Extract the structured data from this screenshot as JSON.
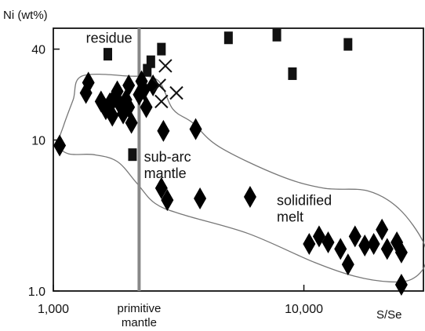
{
  "chart_data": {
    "type": "scatter",
    "ylabel": "Ni (wt%)",
    "xlabel": "S/Se",
    "x_scale": "log",
    "y_scale": "log",
    "xlim": [
      1000,
      30000
    ],
    "ylim": [
      1.0,
      55
    ],
    "x_ticks": [
      {
        "value": 1000,
        "label": "1,000"
      },
      {
        "value": 10000,
        "label": "10,000"
      }
    ],
    "y_ticks": [
      {
        "value": 1.0,
        "label": "1.0"
      },
      {
        "value": 10,
        "label": "10"
      },
      {
        "value": 40,
        "label": "40"
      }
    ],
    "annotations": [
      {
        "lines": [
          "residue"
        ],
        "at": [
          1350,
          44
        ]
      },
      {
        "lines": [
          "sub-arc",
          "mantle"
        ],
        "at": [
          2300,
          7.2
        ]
      },
      {
        "lines": [
          "solidified",
          "melt"
        ],
        "at": [
          7800,
          3.7
        ]
      }
    ],
    "reference_line": {
      "x": 2200,
      "label_lines": [
        "primitive",
        "mantle"
      ]
    },
    "field_outlines": [
      {
        "name": "residue-field",
        "points": [
          [
            1300,
            26.5
          ],
          [
            2000,
            26.5
          ],
          [
            2600,
            25
          ],
          [
            3000,
            16
          ],
          [
            3600,
            13
          ],
          [
            4600,
            9
          ],
          [
            8000,
            5.8
          ],
          [
            12000,
            4.8
          ],
          [
            18000,
            4.6
          ],
          [
            24000,
            3.5
          ],
          [
            30000,
            2.1
          ],
          [
            30500,
            1.5
          ],
          [
            27000,
            1.2
          ],
          [
            22000,
            1.15
          ],
          [
            16000,
            1.25
          ],
          [
            11000,
            1.55
          ],
          [
            6000,
            2.4
          ],
          [
            3300,
            3.2
          ],
          [
            2550,
            3.8
          ],
          [
            2150,
            5.2
          ],
          [
            1800,
            7.2
          ],
          [
            1450,
            8.0
          ],
          [
            1150,
            8.1
          ],
          [
            1050,
            9.4
          ],
          [
            1100,
            12.5
          ],
          [
            1200,
            18.5
          ],
          [
            1300,
            26.5
          ]
        ]
      }
    ],
    "series": [
      {
        "marker": "square",
        "points": [
          [
            1650,
            37
          ],
          [
            2450,
            33
          ],
          [
            2370,
            29
          ],
          [
            2700,
            40
          ],
          [
            5000,
            47.5
          ],
          [
            7800,
            49.5
          ],
          [
            15000,
            43
          ],
          [
            9000,
            27.5
          ],
          [
            2070,
            8
          ]
        ]
      },
      {
        "marker": "diamond",
        "points": [
          [
            1060,
            9.2
          ],
          [
            1350,
            20.5
          ],
          [
            1380,
            24
          ],
          [
            1550,
            18
          ],
          [
            1620,
            16
          ],
          [
            1680,
            17.5
          ],
          [
            1720,
            14.5
          ],
          [
            1750,
            19
          ],
          [
            1800,
            21
          ],
          [
            1850,
            17
          ],
          [
            1900,
            15
          ],
          [
            1950,
            18.5
          ],
          [
            2000,
            16.5
          ],
          [
            2050,
            13
          ],
          [
            2000,
            23
          ],
          [
            2200,
            20
          ],
          [
            2250,
            24.5
          ],
          [
            2350,
            16.5
          ],
          [
            2300,
            21.5
          ],
          [
            2500,
            23
          ],
          [
            2750,
            11.5
          ],
          [
            3700,
            11.8
          ],
          [
            2700,
            4.8
          ],
          [
            2850,
            4.0
          ],
          [
            3850,
            4.1
          ],
          [
            6100,
            4.2
          ],
          [
            10500,
            2.05
          ],
          [
            11500,
            2.3
          ],
          [
            12500,
            2.1
          ],
          [
            14000,
            1.9
          ],
          [
            16000,
            2.3
          ],
          [
            17500,
            2.0
          ],
          [
            19000,
            2.05
          ],
          [
            20500,
            2.55
          ],
          [
            21500,
            1.9
          ],
          [
            23500,
            2.1
          ],
          [
            24500,
            1.8
          ],
          [
            15000,
            1.5
          ],
          [
            24500,
            1.1
          ]
        ]
      },
      {
        "marker": "x",
        "points": [
          [
            2800,
            31
          ],
          [
            2650,
            23
          ],
          [
            3100,
            20.5
          ],
          [
            2700,
            18
          ]
        ]
      }
    ]
  }
}
